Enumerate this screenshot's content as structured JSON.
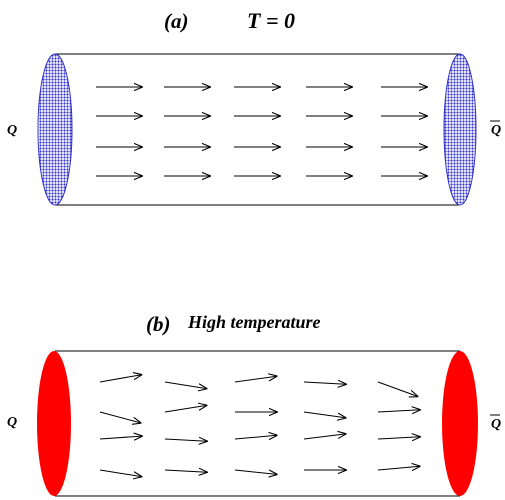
{
  "panels": [
    {
      "id": "a",
      "label": "(a)",
      "title": "T = 0",
      "left_quark": "Q",
      "right_quark": "Q",
      "cap_color": "#3333cc",
      "cap_style": "dotted",
      "arrow_angles_deg": [
        [
          0,
          0,
          0,
          0,
          0
        ],
        [
          0,
          0,
          0,
          0,
          0
        ],
        [
          0,
          0,
          0,
          0,
          0
        ],
        [
          0,
          0,
          0,
          0,
          0
        ]
      ]
    },
    {
      "id": "b",
      "label": "(b)",
      "title": "High temperature",
      "left_quark": "Q",
      "right_quark": "Q",
      "cap_color": "#ff0000",
      "cap_style": "solid",
      "arrow_angles_deg": [
        [
          -10,
          9,
          -8,
          3,
          20
        ],
        [
          15,
          -9,
          0,
          8,
          -3
        ],
        [
          -4,
          3,
          -5,
          -7,
          -3
        ],
        [
          9,
          3,
          6,
          0,
          -5
        ]
      ]
    }
  ]
}
